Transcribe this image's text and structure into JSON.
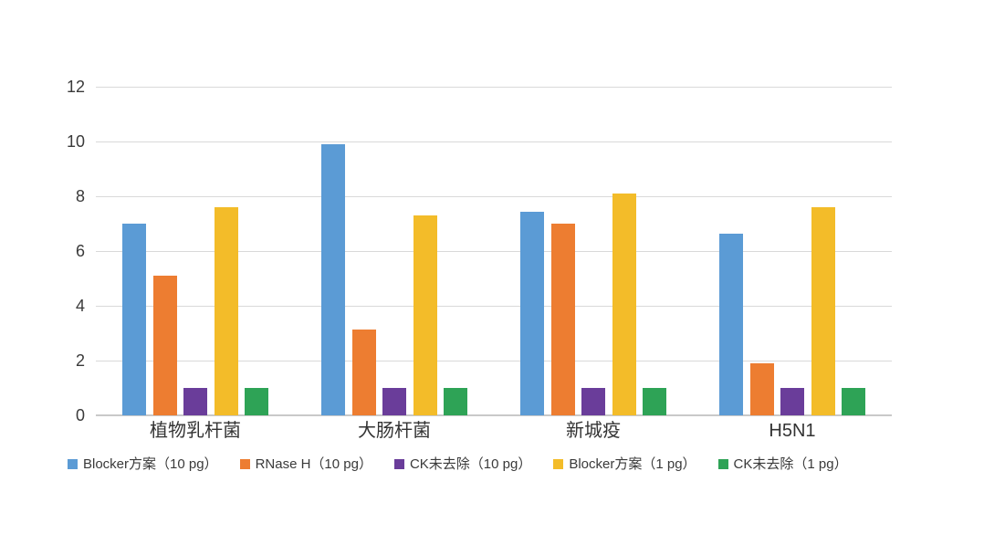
{
  "chart_data": {
    "type": "bar",
    "title": "",
    "xlabel": "",
    "ylabel": "",
    "categories": [
      "植物乳杆菌",
      "大肠杆菌",
      "新城疫",
      "H5N1"
    ],
    "series": [
      {
        "name": "Blocker方案（10 pg）",
        "color": "#5B9BD5",
        "values": [
          7.0,
          9.9,
          7.45,
          6.65
        ]
      },
      {
        "name": "RNase H（10 pg）",
        "color": "#ED7D31",
        "values": [
          5.1,
          3.15,
          7.0,
          1.9
        ]
      },
      {
        "name": "CK未去除（10 pg）",
        "color": "#6A3D9A",
        "values": [
          1.0,
          1.0,
          1.0,
          1.0
        ]
      },
      {
        "name": "Blocker方案（1 pg）",
        "color": "#F3BC29",
        "values": [
          7.6,
          7.3,
          8.1,
          7.6
        ]
      },
      {
        "name": "CK未去除（1 pg）",
        "color": "#2EA356",
        "values": [
          1.0,
          1.0,
          1.0,
          1.0
        ]
      }
    ],
    "ylim": [
      0,
      12
    ],
    "yticks": [
      0,
      2,
      4,
      6,
      8,
      10,
      12
    ],
    "grid": true,
    "legend_position": "bottom"
  },
  "colors": {
    "gridline": "#D9D9D9",
    "axis_line": "#C9C9C9",
    "tick_text": "#3A3A3A",
    "background": "#FFFFFF"
  }
}
